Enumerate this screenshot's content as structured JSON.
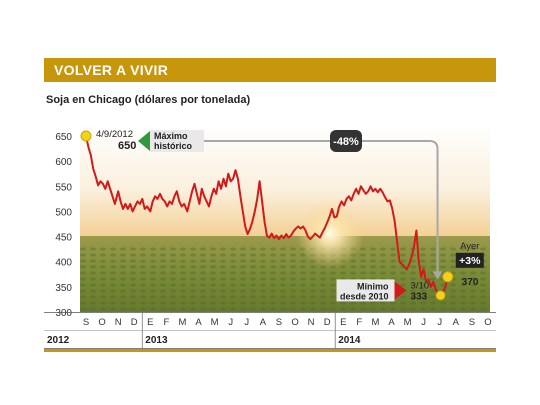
{
  "banner": {
    "title": "VOLVER A VIVIR"
  },
  "colors": {
    "accent": "#c8960a",
    "line": "#d11a1a",
    "max_arrow": "#2e9a3c",
    "min_arrow": "#d11a1a",
    "marker": "#f2d21b",
    "ayer_box": "#222222"
  },
  "chart_data": {
    "type": "line",
    "subtitle": "Soja en Chicago (dólares por tonelada)",
    "ylim": [
      300,
      650
    ],
    "yticks": [
      300,
      350,
      400,
      450,
      500,
      550,
      600,
      650
    ],
    "month_ticks": [
      "S",
      "O",
      "N",
      "D",
      "E",
      "F",
      "M",
      "A",
      "M",
      "J",
      "J",
      "A",
      "S",
      "O",
      "N",
      "D",
      "E",
      "F",
      "M",
      "A",
      "M",
      "J",
      "J",
      "A",
      "S",
      "O"
    ],
    "years": [
      "2012",
      "2013",
      "2014"
    ],
    "x_unit": "month index starting Sep 2012",
    "series": [
      {
        "values": [
          [
            0.0,
            650
          ],
          [
            0.15,
            628
          ],
          [
            0.3,
            612
          ],
          [
            0.45,
            585
          ],
          [
            0.6,
            570
          ],
          [
            0.75,
            552
          ],
          [
            0.9,
            560
          ],
          [
            1.05,
            555
          ],
          [
            1.2,
            545
          ],
          [
            1.35,
            560
          ],
          [
            1.5,
            545
          ],
          [
            1.65,
            530
          ],
          [
            1.8,
            515
          ],
          [
            2.0,
            540
          ],
          [
            2.15,
            520
          ],
          [
            2.3,
            505
          ],
          [
            2.45,
            515
          ],
          [
            2.6,
            505
          ],
          [
            2.75,
            515
          ],
          [
            2.9,
            500
          ],
          [
            3.05,
            510
          ],
          [
            3.2,
            520
          ],
          [
            3.35,
            515
          ],
          [
            3.5,
            525
          ],
          [
            3.65,
            505
          ],
          [
            3.8,
            510
          ],
          [
            4.0,
            500
          ],
          [
            4.15,
            520
          ],
          [
            4.3,
            530
          ],
          [
            4.45,
            525
          ],
          [
            4.6,
            535
          ],
          [
            4.75,
            525
          ],
          [
            4.9,
            520
          ],
          [
            5.05,
            510
          ],
          [
            5.2,
            520
          ],
          [
            5.35,
            515
          ],
          [
            5.5,
            530
          ],
          [
            5.65,
            540
          ],
          [
            5.8,
            520
          ],
          [
            5.95,
            510
          ],
          [
            6.1,
            515
          ],
          [
            6.3,
            500
          ],
          [
            6.45,
            520
          ],
          [
            6.6,
            540
          ],
          [
            6.75,
            555
          ],
          [
            6.9,
            535
          ],
          [
            7.05,
            515
          ],
          [
            7.2,
            545
          ],
          [
            7.35,
            530
          ],
          [
            7.5,
            520
          ],
          [
            7.65,
            510
          ],
          [
            7.8,
            530
          ],
          [
            7.95,
            545
          ],
          [
            8.1,
            535
          ],
          [
            8.25,
            560
          ],
          [
            8.4,
            545
          ],
          [
            8.55,
            565
          ],
          [
            8.7,
            550
          ],
          [
            8.85,
            575
          ],
          [
            9.0,
            560
          ],
          [
            9.15,
            565
          ],
          [
            9.3,
            582
          ],
          [
            9.45,
            565
          ],
          [
            9.6,
            530
          ],
          [
            9.75,
            500
          ],
          [
            9.9,
            470
          ],
          [
            10.05,
            455
          ],
          [
            10.2,
            465
          ],
          [
            10.35,
            480
          ],
          [
            10.5,
            500
          ],
          [
            10.65,
            525
          ],
          [
            10.8,
            560
          ],
          [
            10.95,
            520
          ],
          [
            11.1,
            480
          ],
          [
            11.25,
            452
          ],
          [
            11.4,
            448
          ],
          [
            11.55,
            456
          ],
          [
            11.7,
            447
          ],
          [
            11.85,
            452
          ],
          [
            12.0,
            445
          ],
          [
            12.15,
            452
          ],
          [
            12.3,
            447
          ],
          [
            12.45,
            455
          ],
          [
            12.6,
            448
          ],
          [
            12.75,
            452
          ],
          [
            12.9,
            460
          ],
          [
            13.05,
            466
          ],
          [
            13.2,
            470
          ],
          [
            13.35,
            466
          ],
          [
            13.5,
            470
          ],
          [
            13.65,
            462
          ],
          [
            13.8,
            450
          ],
          [
            13.95,
            445
          ],
          [
            14.1,
            450
          ],
          [
            14.25,
            456
          ],
          [
            14.4,
            452
          ],
          [
            14.55,
            448
          ],
          [
            14.7,
            458
          ],
          [
            14.85,
            467
          ],
          [
            15.0,
            478
          ],
          [
            15.15,
            490
          ],
          [
            15.3,
            505
          ],
          [
            15.45,
            488
          ],
          [
            15.6,
            490
          ],
          [
            15.75,
            510
          ],
          [
            15.9,
            520
          ],
          [
            16.05,
            512
          ],
          [
            16.2,
            525
          ],
          [
            16.35,
            530
          ],
          [
            16.5,
            522
          ],
          [
            16.65,
            535
          ],
          [
            16.8,
            545
          ],
          [
            16.95,
            535
          ],
          [
            17.1,
            550
          ],
          [
            17.25,
            542
          ],
          [
            17.4,
            535
          ],
          [
            17.55,
            540
          ],
          [
            17.7,
            550
          ],
          [
            17.85,
            540
          ],
          [
            18.0,
            545
          ],
          [
            18.15,
            538
          ],
          [
            18.3,
            545
          ],
          [
            18.45,
            538
          ],
          [
            18.6,
            528
          ],
          [
            18.75,
            520
          ],
          [
            18.9,
            522
          ],
          [
            19.05,
            505
          ],
          [
            19.2,
            480
          ],
          [
            19.35,
            440
          ],
          [
            19.5,
            400
          ],
          [
            19.65,
            395
          ],
          [
            19.8,
            390
          ],
          [
            19.95,
            385
          ],
          [
            20.1,
            395
          ],
          [
            20.25,
            410
          ],
          [
            20.4,
            430
          ],
          [
            20.55,
            462
          ],
          [
            20.7,
            400
          ],
          [
            20.85,
            370
          ],
          [
            21.0,
            385
          ],
          [
            21.15,
            360
          ],
          [
            21.3,
            365
          ],
          [
            21.45,
            350
          ],
          [
            21.6,
            360
          ],
          [
            21.75,
            345
          ],
          [
            21.9,
            338
          ],
          [
            22.05,
            333
          ],
          [
            22.2,
            340
          ],
          [
            22.35,
            350
          ],
          [
            22.5,
            370
          ]
        ]
      }
    ],
    "annotations": {
      "max": {
        "date": "4/9/2012",
        "value": "650",
        "label": [
          "Máximo",
          "histórico"
        ]
      },
      "change": {
        "text": "-48%"
      },
      "min": {
        "date": "3/10",
        "value": "333",
        "label": [
          "Mínimo",
          "desde 2010"
        ]
      },
      "ayer": {
        "label": "Ayer",
        "change": "+3%",
        "value": "370"
      }
    },
    "grid": false
  }
}
